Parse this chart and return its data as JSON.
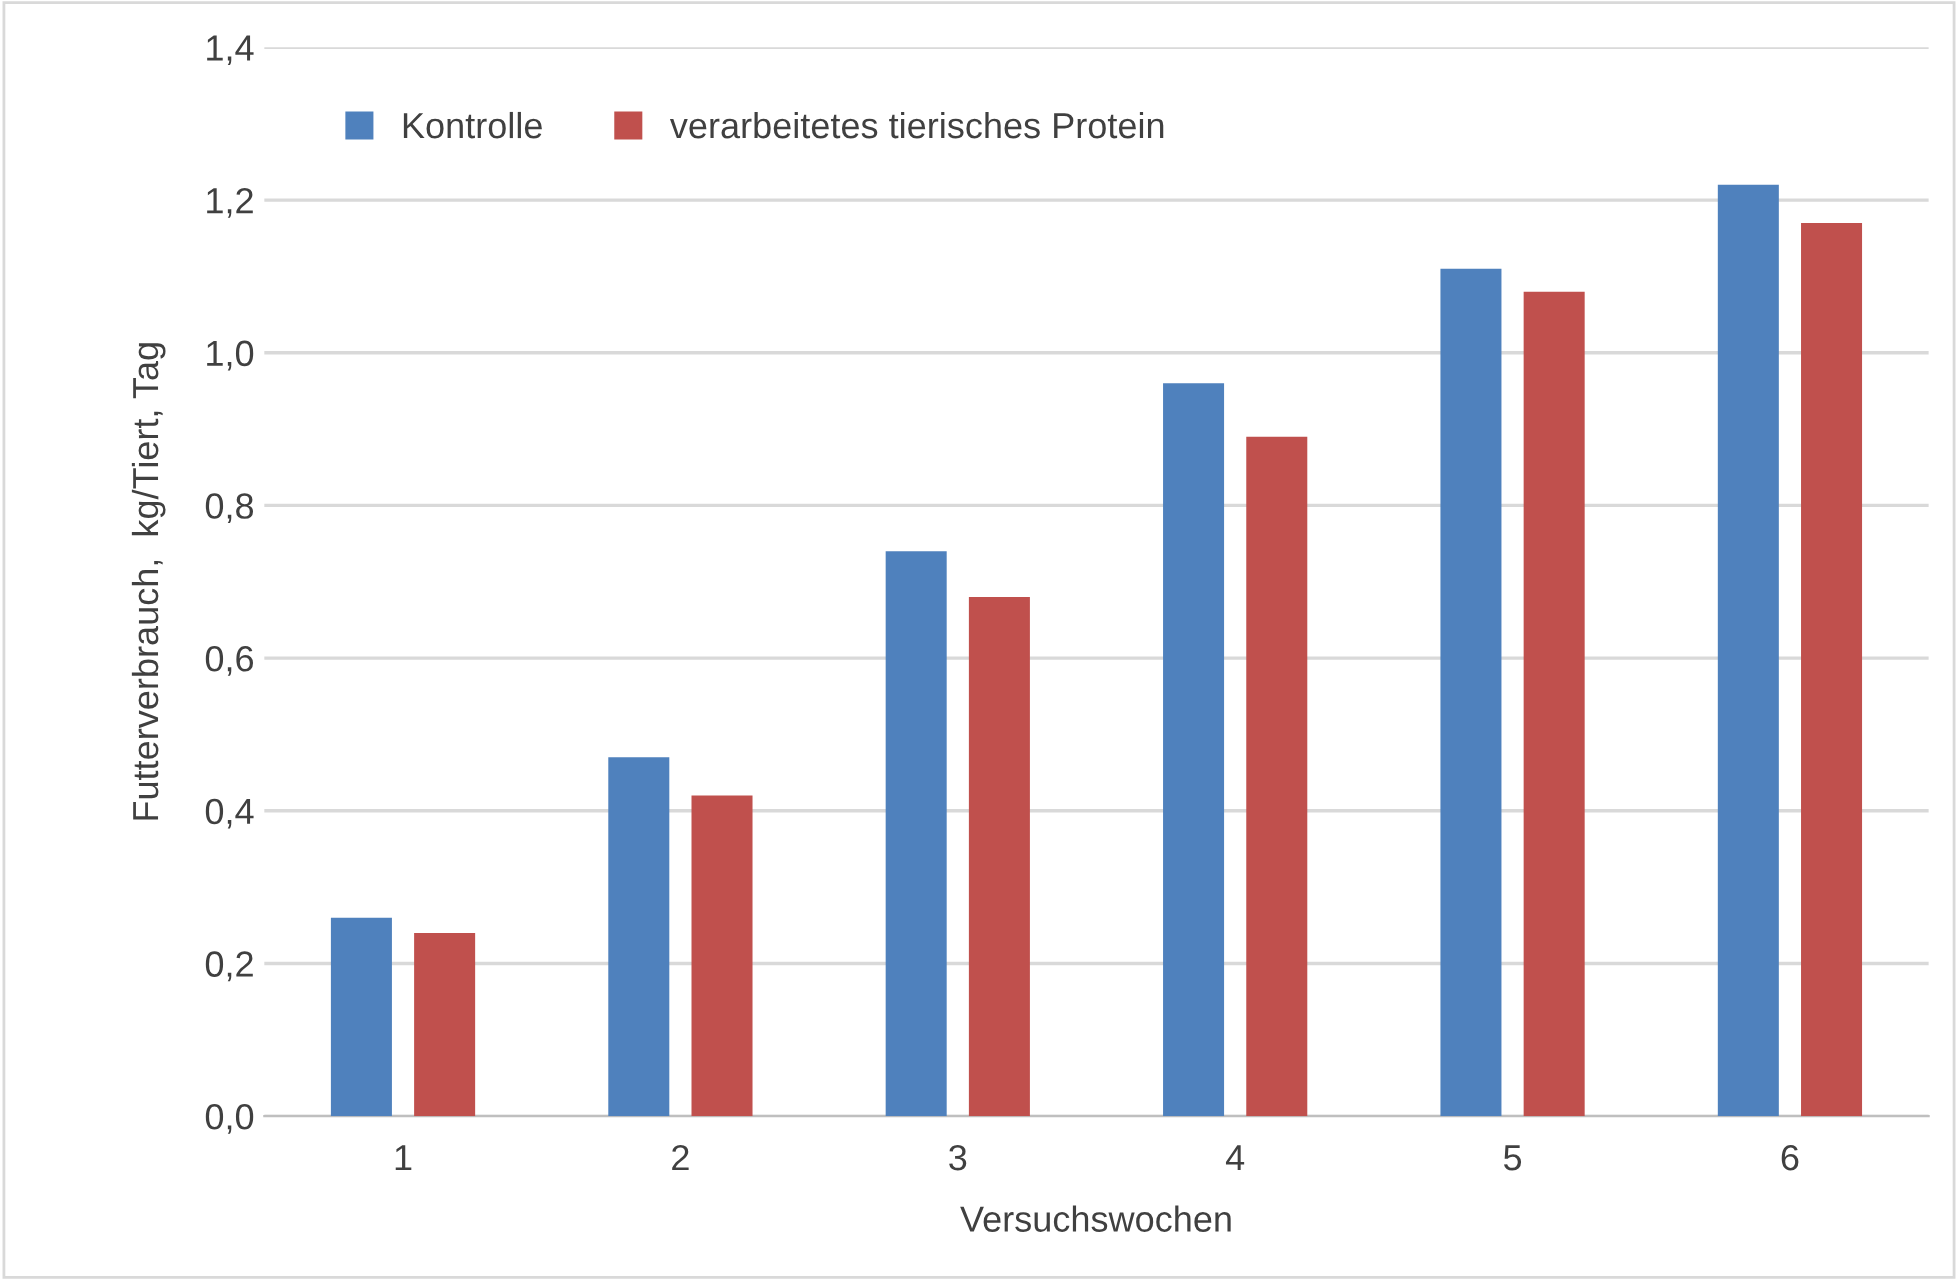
{
  "chart_data": {
    "type": "bar",
    "xlabel": "Versuchswochen",
    "ylabel": "Futterverbrauch,  kg/Tiert, Tag",
    "categories": [
      "1",
      "2",
      "3",
      "4",
      "5",
      "6"
    ],
    "series": [
      {
        "name": "Kontrolle",
        "color": "#4f81bd",
        "values": [
          0.26,
          0.47,
          0.74,
          0.96,
          1.11,
          1.22
        ]
      },
      {
        "name": "verarbeitetes tierisches Protein",
        "color": "#c0504d",
        "values": [
          0.24,
          0.42,
          0.68,
          0.89,
          1.08,
          1.17
        ]
      }
    ],
    "ylim": [
      0,
      1.4
    ],
    "yticks": [
      {
        "value": 0,
        "label": "0,0"
      },
      {
        "value": 0.2,
        "label": "0,2"
      },
      {
        "value": 0.4,
        "label": "0,4"
      },
      {
        "value": 0.6,
        "label": "0,6"
      },
      {
        "value": 0.8,
        "label": "0,8"
      },
      {
        "value": 1.0,
        "label": "1,0"
      },
      {
        "value": 1.2,
        "label": "1,2"
      },
      {
        "value": 1.4,
        "label": "1,4"
      }
    ],
    "grid": "y",
    "legend": "top left"
  }
}
